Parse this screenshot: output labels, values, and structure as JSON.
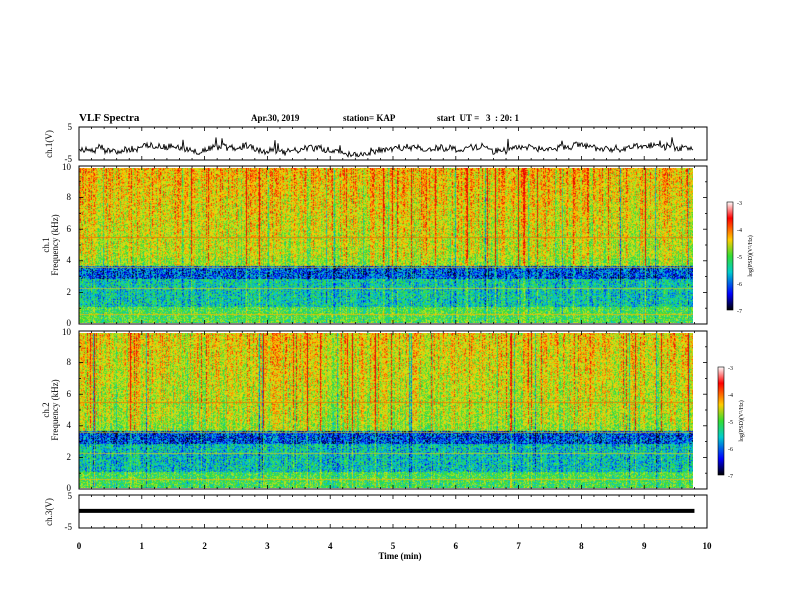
{
  "header": {
    "title": "VLF Spectra",
    "date": "Apr.30, 2019",
    "station": "station= KAP",
    "start": "start  UT =   3  : 20: 1"
  },
  "chart_data": [
    {
      "type": "line",
      "name": "ch1-waveform",
      "ylabel": "ch.1(V)",
      "ylim": [
        -5,
        5
      ],
      "yticks": [
        "5",
        "-5"
      ],
      "description_values": {
        "baseline_v": -1.5,
        "amplitude_v": 1.8
      },
      "xlim": [
        0,
        10
      ]
    },
    {
      "type": "heatmap",
      "name": "ch1-spectrogram",
      "ylabel_line1": "ch.1",
      "ylabel_line2": "Frequency (kHz)",
      "ylim": [
        0,
        10
      ],
      "yticks": [
        "0",
        "2",
        "4",
        "6",
        "8",
        "10"
      ],
      "xlim": [
        0,
        9.8
      ],
      "colorbar": {
        "label": "log(PSD)(V²/Hz)",
        "range": [
          -7,
          -3
        ],
        "ticks": [
          "-3",
          "-4",
          "-5",
          "-6",
          "-7"
        ]
      }
    },
    {
      "type": "heatmap",
      "name": "ch2-spectrogram",
      "ylabel_line1": "ch.2",
      "ylabel_line2": "Frequency (kHz)",
      "ylim": [
        0,
        10
      ],
      "yticks": [
        "0",
        "2",
        "4",
        "6",
        "8",
        "10"
      ],
      "xlim": [
        0,
        9.8
      ],
      "colorbar": {
        "label": "log(PSD)(V²/Hz)",
        "range": [
          -7,
          -3
        ],
        "ticks": [
          "-3",
          "-4",
          "-5",
          "-6",
          "-7"
        ]
      }
    },
    {
      "type": "line",
      "name": "ch3-waveform",
      "ylabel": "ch.3(V)",
      "ylim": [
        -5,
        5
      ],
      "yticks": [
        "5",
        "-5"
      ],
      "constant_value_v": 0.2,
      "xlim": [
        0,
        9.8
      ]
    }
  ],
  "xaxis": {
    "label": "Time (min)",
    "ticks": [
      "0",
      "1",
      "2",
      "3",
      "4",
      "5",
      "6",
      "7",
      "8",
      "9",
      "10"
    ]
  },
  "colors": {
    "line": "#000000",
    "axes": "#000000"
  }
}
